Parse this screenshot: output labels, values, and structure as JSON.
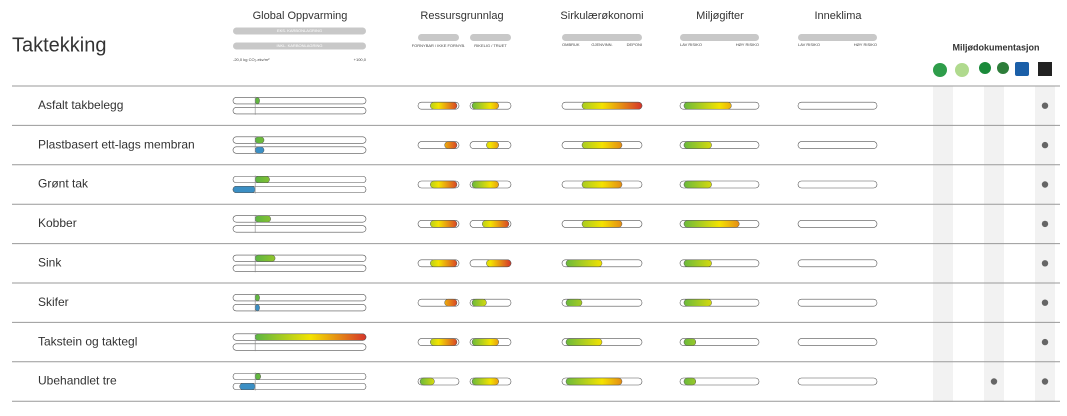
{
  "header": {
    "title": "Taktekking"
  },
  "columns": {
    "gwp": {
      "title": "Global Oppvarming",
      "series": [
        {
          "name": "EKS. KARBONLAGRING",
          "color": "#6cb34a"
        },
        {
          "name": "INKL. KARBONLAGRING",
          "color": "#3b8fc4"
        }
      ],
      "xlim": [
        -20,
        100
      ],
      "xticks": [
        {
          "value": -20,
          "label": "-20,0 kg CO₂-ekv/m²"
        },
        {
          "value": 100,
          "label": "+100,0"
        }
      ]
    },
    "ressurs": {
      "title": "Ressursgrunnlag",
      "scales": [
        "FORNYBAR / IKKE FORNYB.",
        "RIKELIG / TRUET"
      ]
    },
    "sirkular": {
      "title": "Sirkulærøkonomi",
      "scale": [
        "OMBRUK",
        "GJENVINN.",
        "DEPONI"
      ]
    },
    "miljogifter": {
      "title": "Miljøgifter",
      "scale": [
        "LAV RISIKO",
        "HØY RISIKO"
      ]
    },
    "inneklima": {
      "title": "Inneklima",
      "scale": [
        "LAV RISIKO",
        "HØY RISIKO"
      ]
    },
    "dokumentasjon": {
      "title": "Miljødokumentasjon"
    }
  },
  "range_lim": [
    0,
    100
  ],
  "gradient": [
    "#5bb543",
    "#f4e300",
    "#d6342a"
  ],
  "rows": [
    {
      "name": "Asfalt takbelegg",
      "gwp": [
        4,
        null
      ],
      "ressurs": [
        [
          30,
          95
        ],
        [
          5,
          70
        ]
      ],
      "sirkular": [
        25,
        100
      ],
      "miljogifter": [
        5,
        65
      ],
      "dokumentasjon": [
        false,
        false,
        true
      ]
    },
    {
      "name": "Plastbasert ett-lags membran",
      "gwp": [
        8,
        8
      ],
      "ressurs": [
        [
          65,
          95
        ],
        [
          40,
          70
        ]
      ],
      "sirkular": [
        25,
        75
      ],
      "miljogifter": [
        5,
        40
      ],
      "dokumentasjon": [
        false,
        false,
        true
      ]
    },
    {
      "name": "Grønt tak",
      "gwp": [
        13,
        -20
      ],
      "ressurs": [
        [
          30,
          95
        ],
        [
          5,
          70
        ]
      ],
      "sirkular": [
        25,
        75
      ],
      "miljogifter": [
        5,
        40
      ],
      "dokumentasjon": [
        false,
        false,
        true
      ]
    },
    {
      "name": "Kobber",
      "gwp": [
        14,
        null
      ],
      "ressurs": [
        [
          30,
          95
        ],
        [
          30,
          95
        ]
      ],
      "sirkular": [
        25,
        75
      ],
      "miljogifter": [
        5,
        75
      ],
      "dokumentasjon": [
        false,
        false,
        true
      ]
    },
    {
      "name": "Sink",
      "gwp": [
        18,
        null
      ],
      "ressurs": [
        [
          30,
          95
        ],
        [
          40,
          100
        ]
      ],
      "sirkular": [
        5,
        50
      ],
      "miljogifter": [
        5,
        40
      ],
      "dokumentasjon": [
        false,
        false,
        true
      ]
    },
    {
      "name": "Skifer",
      "gwp": [
        4,
        4
      ],
      "ressurs": [
        [
          65,
          95
        ],
        [
          5,
          40
        ]
      ],
      "sirkular": [
        5,
        25
      ],
      "miljogifter": [
        5,
        40
      ],
      "dokumentasjon": [
        false,
        false,
        true
      ]
    },
    {
      "name": "Takstein og taktegl",
      "gwp": [
        100,
        null
      ],
      "ressurs": [
        [
          30,
          95
        ],
        [
          5,
          70
        ]
      ],
      "sirkular": [
        5,
        50
      ],
      "miljogifter": [
        5,
        20
      ],
      "dokumentasjon": [
        false,
        false,
        true
      ]
    },
    {
      "name": "Ubehandlet tre",
      "gwp": [
        5,
        -14
      ],
      "ressurs": [
        [
          5,
          40
        ],
        [
          5,
          70
        ]
      ],
      "sirkular": [
        5,
        75
      ],
      "miljogifter": [
        5,
        20
      ],
      "dokumentasjon": [
        false,
        true,
        true
      ]
    }
  ]
}
